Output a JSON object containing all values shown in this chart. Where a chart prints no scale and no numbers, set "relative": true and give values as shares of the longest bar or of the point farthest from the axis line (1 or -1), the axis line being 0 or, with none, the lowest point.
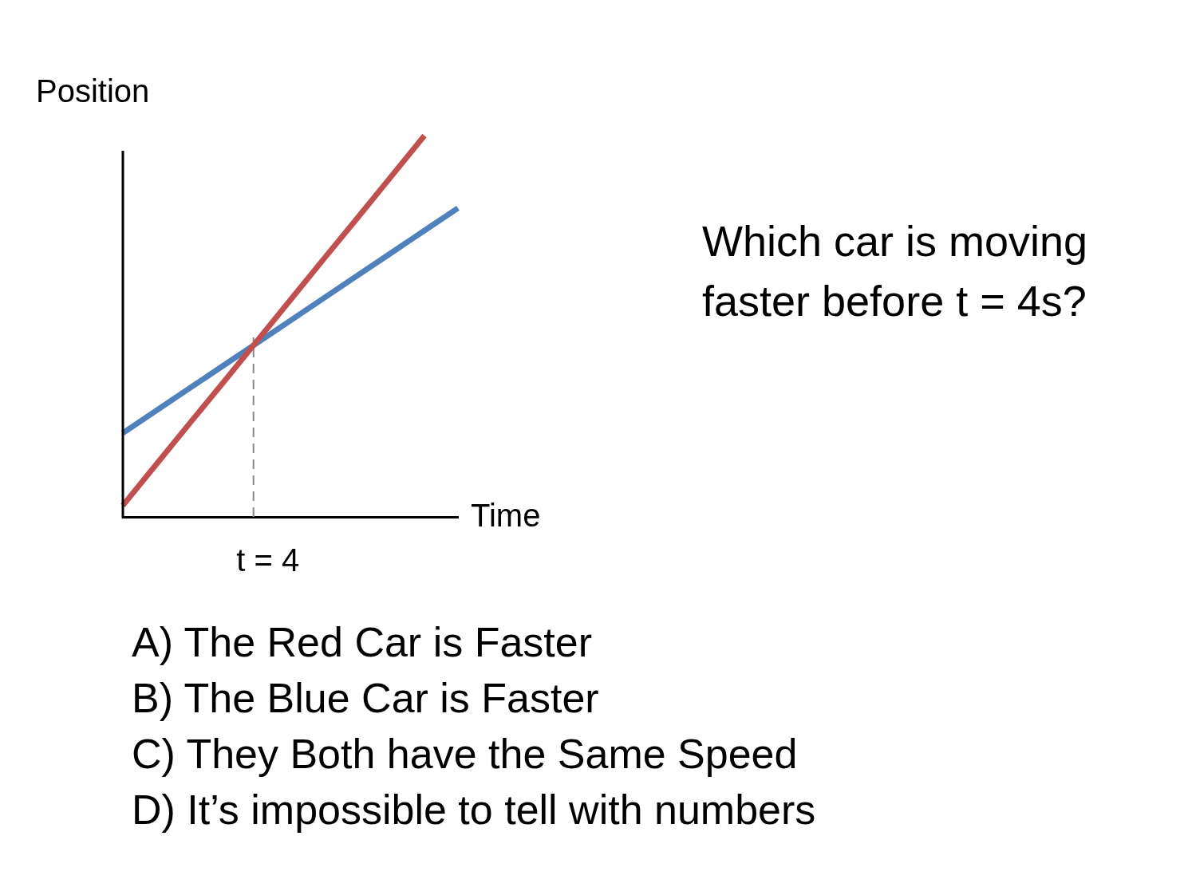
{
  "chart_data": {
    "type": "line",
    "title": "Which car is moving faster before t = 4s?",
    "xlabel": "Time",
    "ylabel": "Position",
    "relative": true,
    "categories": [
      null,
      null,
      null,
      null,
      null,
      null,
      null,
      null,
      null,
      null,
      null
    ],
    "series": [
      {
        "color": "#c0504d",
        "values": [
          0.03,
          0.138,
          0.246,
          0.353,
          0.461,
          0.569,
          0.677,
          0.784,
          0.892,
          1,
          null
        ]
      },
      {
        "color": "#4f81bd",
        "values": [
          0.22,
          0.279,
          0.338,
          0.397,
          0.456,
          0.515,
          0.574,
          0.633,
          0.692,
          0.751,
          0.81
        ]
      }
    ],
    "annotations": [
      "t = 4",
      "A) The Red Car is Faster",
      "B) The Blue Car is Faster",
      "C) They Both have the Same Speed",
      "D) It’s impossible to tell with numbers"
    ],
    "legend": false,
    "line_style": "solid"
  }
}
